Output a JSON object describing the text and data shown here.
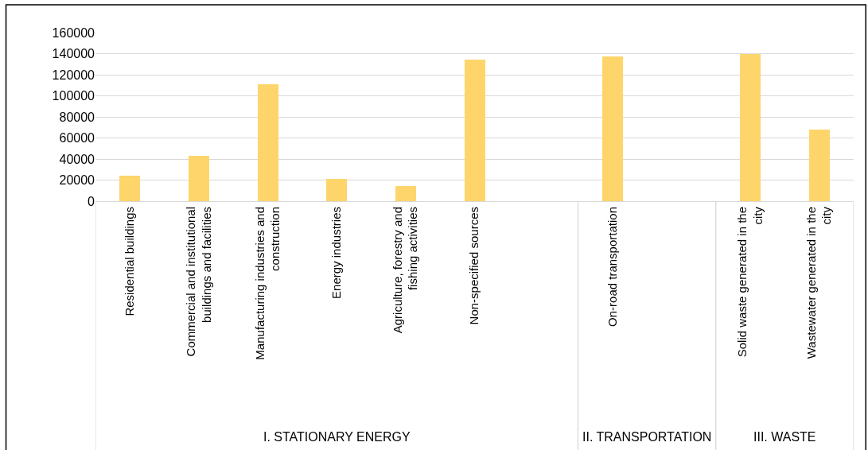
{
  "chart_data": {
    "type": "bar",
    "categories": [
      "Residential buildings",
      "Commercial and institutional buildings and facilities",
      "Manufacturing industries and construction",
      "Energy industries",
      "Agriculture, forestry and fishing activities",
      "Non-specified sources",
      null,
      "On-road transportation",
      null,
      "Solid waste generated in the city",
      "Wastewater generated in the city"
    ],
    "values": [
      24000,
      43000,
      111000,
      21000,
      14000,
      134000,
      null,
      137000,
      null,
      140000,
      68000
    ],
    "color": "#fdd56a",
    "ylim": [
      0,
      160000
    ],
    "yticks": [
      0,
      20000,
      40000,
      60000,
      80000,
      100000,
      120000,
      140000,
      160000
    ],
    "grid": "y",
    "annotations": [
      "I. STATIONARY ENERGY",
      "II. TRANSPORTATION",
      "III. WASTE"
    ]
  }
}
